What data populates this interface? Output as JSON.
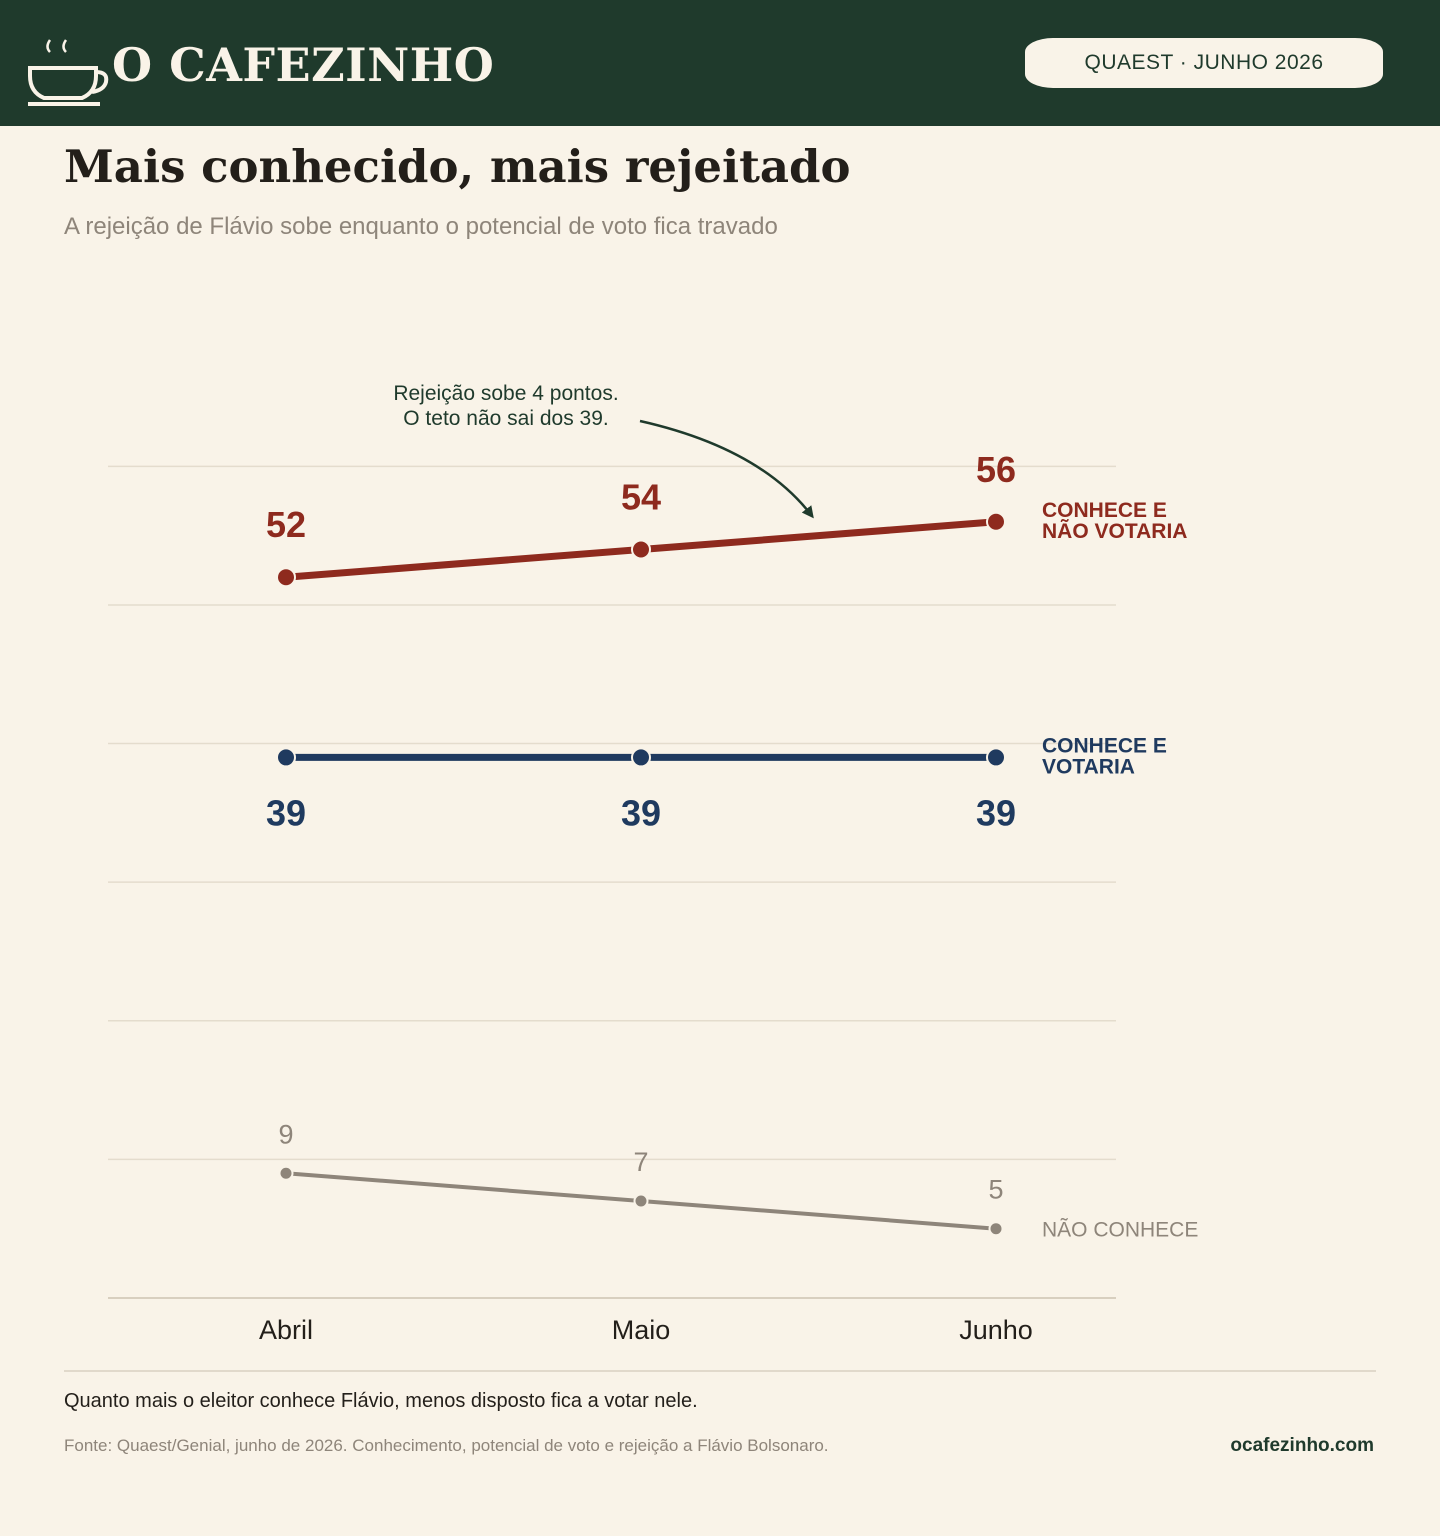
{
  "header": {
    "brand": "O CAFEZINHO",
    "logo_icon": "coffee-cup-icon",
    "badge": "QUAEST · JUNHO 2026"
  },
  "title": "Mais conhecido, mais rejeitado",
  "subtitle": "A rejeição de Flávio sobe enquanto o potencial de voto fica travado",
  "chart_data": {
    "type": "line",
    "categories": [
      "Abril",
      "Maio",
      "Junho"
    ],
    "ylim": [
      0,
      72
    ],
    "grid": true,
    "series": [
      {
        "name": "CONHECE E NÃO VOTARIA",
        "label_lines": [
          "CONHECE E",
          "NÃO VOTARIA"
        ],
        "values": [
          52,
          54,
          56
        ],
        "color": "#8e2a1e",
        "label_position": "above"
      },
      {
        "name": "CONHECE E VOTARIA",
        "label_lines": [
          "CONHECE E",
          "VOTARIA"
        ],
        "values": [
          39,
          39,
          39
        ],
        "color": "#1f3a5f",
        "label_position": "below"
      },
      {
        "name": "NÃO CONHECE",
        "label_lines": [
          "NÃO CONHECE"
        ],
        "values": [
          9,
          7,
          5
        ],
        "color": "#8e857a",
        "label_position": "above"
      }
    ],
    "annotation": {
      "lines": [
        "Rejeição sobe 4 pontos.",
        "O teto não sai dos 39."
      ],
      "color": "#1f3a2c"
    }
  },
  "footer": {
    "note": "Quanto mais o eleitor conhece Flávio, menos disposto fica a votar nele.",
    "source": "Fonte: Quaest/Genial, junho de 2026. Conhecimento, potencial de voto e rejeição a Flávio Bolsonaro.",
    "site": "ocafezinho.com"
  }
}
